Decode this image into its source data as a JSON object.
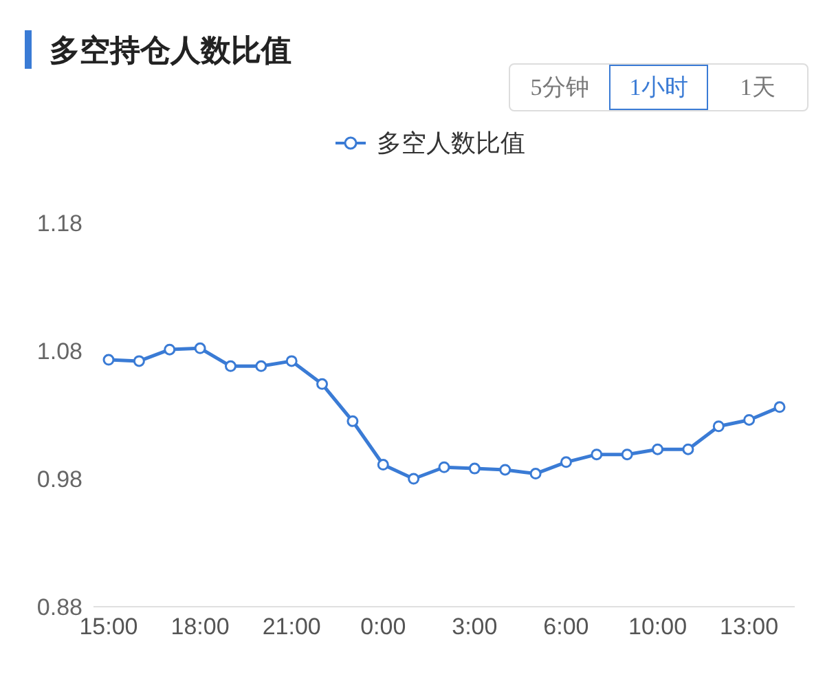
{
  "chart_data": {
    "type": "line",
    "title": "多空持仓人数比值",
    "annotations": [
      "5分钟",
      "1小时",
      "1天"
    ],
    "categories": [
      "15:00",
      null,
      null,
      "18:00",
      null,
      null,
      "21:00",
      null,
      null,
      "0:00",
      null,
      null,
      "3:00",
      null,
      null,
      "6:00",
      null,
      null,
      "10:00",
      null,
      null,
      "13:00",
      null
    ],
    "series": [
      {
        "name": "多空人数比值",
        "color": "#3a7bd5",
        "values": [
          1.073,
          1.072,
          1.081,
          1.082,
          1.068,
          1.068,
          1.072,
          1.054,
          1.025,
          0.991,
          0.98,
          0.989,
          0.988,
          0.987,
          0.984,
          0.993,
          0.999,
          0.999,
          1.003,
          1.003,
          1.021,
          1.026,
          1.036
        ]
      }
    ],
    "ylim": [
      0.88,
      1.18
    ],
    "yticks": [
      0.88,
      0.98,
      1.08,
      1.18
    ],
    "grid": false,
    "legend": "top",
    "marker": "circle",
    "line_style": "solid"
  }
}
